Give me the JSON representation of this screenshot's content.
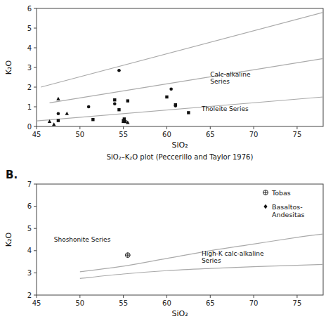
{
  "chart_data": [
    {
      "type": "scatter",
      "subtitle": "SiO₂–K₂O plot (Peccerillo and Taylor 1976)",
      "xlabel": "SiO₂",
      "ylabel": "K₂O",
      "xlim": [
        45,
        78
      ],
      "ylim": [
        0,
        6
      ],
      "xticks": [
        45,
        50,
        55,
        60,
        65,
        70,
        75
      ],
      "yticks": [
        0,
        1,
        2,
        3,
        4,
        5,
        6
      ],
      "series": [
        {
          "marker": "circle",
          "color": "#111111",
          "x": [
            47.5,
            51,
            54,
            54.5,
            60.5,
            61.0
          ],
          "y": [
            0.65,
            1.0,
            1.15,
            2.85,
            1.9,
            1.05
          ]
        },
        {
          "marker": "square",
          "color": "#111111",
          "x": [
            47.5,
            51.5,
            54,
            54.5,
            55,
            55.1,
            55.2,
            55.5,
            60,
            61.0,
            62.5
          ],
          "y": [
            0.3,
            0.35,
            1.35,
            0.85,
            0.3,
            0.38,
            0.25,
            1.3,
            1.5,
            1.1,
            0.7
          ]
        },
        {
          "marker": "triangle",
          "color": "#111111",
          "x": [
            46.5,
            47,
            47.5,
            48.5,
            55,
            55.5
          ],
          "y": [
            0.25,
            0.1,
            1.4,
            0.65,
            0.25,
            0.2
          ]
        },
        {
          "type": "line",
          "color": "#aaaaaa",
          "x": [
            45,
            78
          ],
          "y": [
            0.28,
            1.5
          ]
        },
        {
          "type": "line",
          "color": "#aaaaaa",
          "x": [
            46.5,
            78
          ],
          "y": [
            1.2,
            3.45
          ]
        },
        {
          "type": "line",
          "color": "#aaaaaa",
          "x": [
            45.5,
            78
          ],
          "y": [
            2.0,
            5.8
          ]
        }
      ],
      "annotations": [
        {
          "text": "Calc-alkaline\nSeries",
          "x": 65,
          "y": 2.45
        },
        {
          "text": "Tholeite Series",
          "x": 64,
          "y": 0.88
        }
      ]
    },
    {
      "type": "scatter",
      "title": "B.",
      "xlabel": "SiO₂",
      "ylabel": "K₂O",
      "xlim": [
        45,
        78
      ],
      "ylim": [
        2,
        7
      ],
      "xticks": [
        45,
        50,
        55,
        60,
        65,
        70,
        75
      ],
      "yticks": [
        2,
        3,
        4,
        5,
        6,
        7
      ],
      "legend": "upper right",
      "series": [
        {
          "name": "Tobas",
          "marker": "circle-plus",
          "color": "#111111",
          "x": [
            55.5
          ],
          "y": [
            3.8
          ]
        },
        {
          "name": "Basaltos-\nAndesitas",
          "marker": "diamond",
          "color": "#111111",
          "x": [],
          "y": []
        },
        {
          "type": "spline",
          "color": "#aaaaaa",
          "x": [
            50,
            55,
            60,
            65,
            70,
            75,
            78
          ],
          "y": [
            3.05,
            3.3,
            3.65,
            4.0,
            4.3,
            4.6,
            4.75
          ]
        },
        {
          "type": "spline",
          "color": "#aaaaaa",
          "x": [
            50,
            55,
            60,
            65,
            70,
            75,
            78
          ],
          "y": [
            2.75,
            2.95,
            3.1,
            3.2,
            3.28,
            3.34,
            3.38
          ]
        }
      ],
      "annotations": [
        {
          "text": "Shoshonite Series",
          "x": 47,
          "y": 4.5
        },
        {
          "text": "High-K calc-alkaline\nSeries",
          "x": 64,
          "y": 3.7
        }
      ]
    }
  ]
}
